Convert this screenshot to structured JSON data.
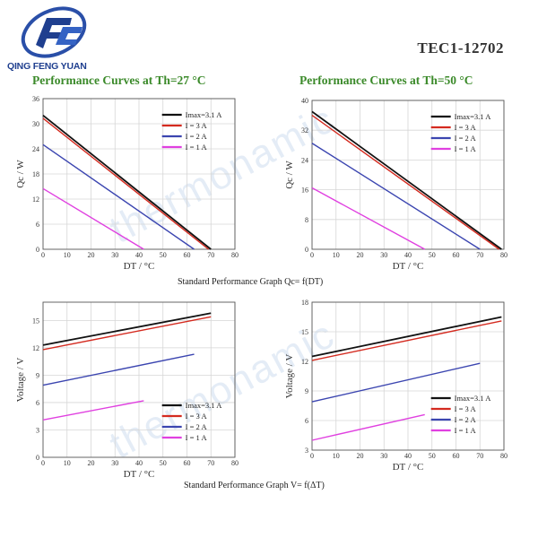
{
  "brand": {
    "name": "QING FENG YUAN"
  },
  "header": {
    "model": "TEC1-12702"
  },
  "titles": {
    "left": "Performance Curves at Th=27 °C",
    "right": "Performance Curves at Th=50 °C"
  },
  "captions": {
    "qc": "Standard Performance Graph Qc= f(DT)",
    "v": "Standard Performance Graph V= f(ΔT)"
  },
  "watermark": {
    "text": "thermonamic"
  },
  "colors": {
    "imax": "#111111",
    "i3": "#d42a1f",
    "i2": "#3b45b0",
    "i1": "#e040e0",
    "grid": "#d6d6d6",
    "title": "#3b8a2a"
  },
  "chart_data": [
    {
      "id": "qc27",
      "type": "line",
      "title": "Performance Curves at Th=27 °C",
      "xlabel": "DT / °C",
      "ylabel": "Qc / W",
      "xlim": [
        0,
        80
      ],
      "ylim": [
        0,
        36
      ],
      "xticks": [
        0,
        10,
        20,
        30,
        40,
        50,
        60,
        70,
        80
      ],
      "yticks": [
        0,
        6,
        12,
        18,
        24,
        30,
        36
      ],
      "legend_position": "top-right",
      "series": [
        {
          "name": "Imax=3.1 A",
          "color": "#111111",
          "x": [
            0,
            70
          ],
          "y": [
            32,
            0
          ]
        },
        {
          "name": "I = 3 A",
          "color": "#d42a1f",
          "x": [
            0,
            69
          ],
          "y": [
            31.3,
            0
          ]
        },
        {
          "name": "I = 2 A",
          "color": "#3b45b0",
          "x": [
            0,
            63
          ],
          "y": [
            25,
            0
          ]
        },
        {
          "name": "I = 1 A",
          "color": "#e040e0",
          "x": [
            0,
            42
          ],
          "y": [
            14.5,
            0
          ]
        }
      ]
    },
    {
      "id": "qc50",
      "type": "line",
      "title": "Performance Curves at Th=50 °C",
      "xlabel": "DT / °C",
      "ylabel": "Qc / W",
      "xlim": [
        0,
        80
      ],
      "ylim": [
        0,
        40
      ],
      "xticks": [
        0,
        10,
        20,
        30,
        40,
        50,
        60,
        70,
        80
      ],
      "yticks": [
        0,
        8,
        16,
        24,
        32,
        40
      ],
      "legend_position": "top-right",
      "series": [
        {
          "name": "Imax=3.1 A",
          "color": "#111111",
          "x": [
            0,
            79
          ],
          "y": [
            37,
            0
          ]
        },
        {
          "name": "I = 3 A",
          "color": "#d42a1f",
          "x": [
            0,
            78
          ],
          "y": [
            36,
            0
          ]
        },
        {
          "name": "I = 2 A",
          "color": "#3b45b0",
          "x": [
            0,
            70
          ],
          "y": [
            28.5,
            0
          ]
        },
        {
          "name": "I = 1 A",
          "color": "#e040e0",
          "x": [
            0,
            47
          ],
          "y": [
            16.5,
            0
          ]
        }
      ]
    },
    {
      "id": "v27",
      "type": "line",
      "title": "",
      "xlabel": "DT / °C",
      "ylabel": "Voltage / V",
      "xlim": [
        0,
        80
      ],
      "ylim": [
        0,
        17
      ],
      "xticks": [
        0,
        10,
        20,
        30,
        40,
        50,
        60,
        70,
        80
      ],
      "yticks": [
        0,
        3,
        6,
        9,
        12,
        15
      ],
      "legend_position": "bottom-right",
      "series": [
        {
          "name": "Imax=3.1 A",
          "color": "#111111",
          "x": [
            0,
            70
          ],
          "y": [
            12.3,
            15.8
          ]
        },
        {
          "name": "I = 3 A",
          "color": "#d42a1f",
          "x": [
            0,
            70
          ],
          "y": [
            11.8,
            15.4
          ]
        },
        {
          "name": "I = 2 A",
          "color": "#3b45b0",
          "x": [
            0,
            63
          ],
          "y": [
            7.9,
            11.3
          ]
        },
        {
          "name": "I = 1 A",
          "color": "#e040e0",
          "x": [
            0,
            42
          ],
          "y": [
            4.1,
            6.2
          ]
        }
      ]
    },
    {
      "id": "v50",
      "type": "line",
      "title": "",
      "xlabel": "DT / °C",
      "ylabel": "Voltage / V",
      "xlim": [
        0,
        80
      ],
      "ylim": [
        3,
        18
      ],
      "xticks": [
        0,
        10,
        20,
        30,
        40,
        50,
        60,
        70,
        80
      ],
      "yticks": [
        3,
        6,
        9,
        12,
        15,
        18
      ],
      "legend_position": "bottom-right",
      "series": [
        {
          "name": "Imax=3.1 A",
          "color": "#111111",
          "x": [
            0,
            79
          ],
          "y": [
            12.5,
            16.5
          ]
        },
        {
          "name": "I = 3 A",
          "color": "#d42a1f",
          "x": [
            0,
            79
          ],
          "y": [
            12.1,
            16.1
          ]
        },
        {
          "name": "I = 2 A",
          "color": "#3b45b0",
          "x": [
            0,
            70
          ],
          "y": [
            7.9,
            11.8
          ]
        },
        {
          "name": "I = 1 A",
          "color": "#e040e0",
          "x": [
            0,
            47
          ],
          "y": [
            4.0,
            6.6
          ]
        }
      ]
    }
  ]
}
